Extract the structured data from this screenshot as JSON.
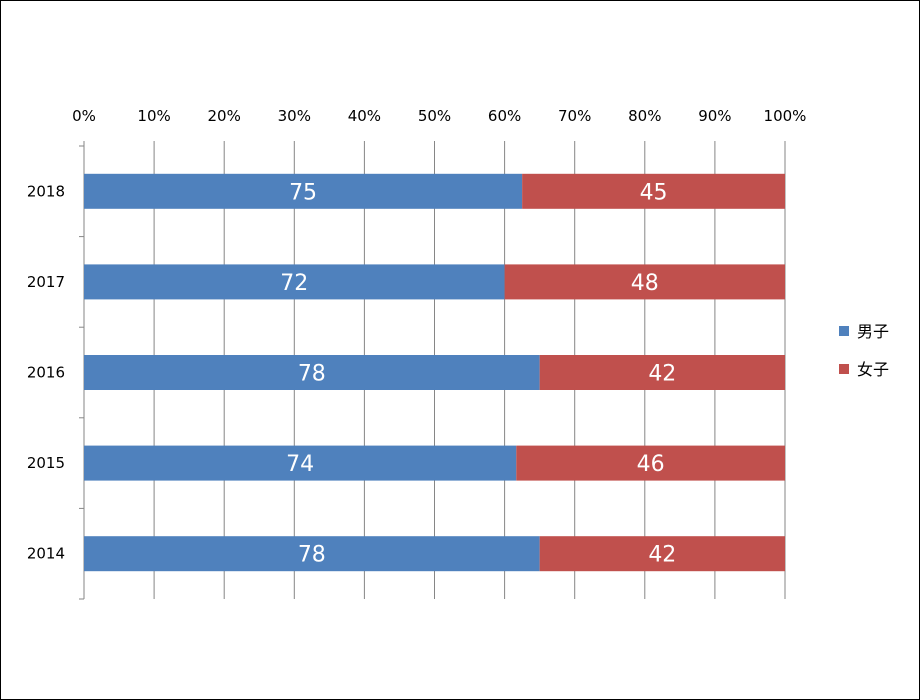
{
  "chart_data": {
    "type": "bar",
    "orientation": "horizontal",
    "stacking": "percent",
    "categories": [
      "2018",
      "2017",
      "2016",
      "2015",
      "2014"
    ],
    "series": [
      {
        "name": "男子",
        "values": [
          75,
          72,
          78,
          74,
          78
        ],
        "color": "#4F81BD"
      },
      {
        "name": "女子",
        "values": [
          45,
          48,
          42,
          46,
          42
        ],
        "color": "#C0504D"
      }
    ],
    "title": "",
    "xlabel": "",
    "ylabel": "",
    "xlim": [
      0,
      100
    ],
    "x_tick_labels": [
      "0%",
      "10%",
      "20%",
      "30%",
      "40%",
      "50%",
      "60%",
      "70%",
      "80%",
      "90%",
      "100%"
    ],
    "x_axis_position": "top",
    "grid": true,
    "legend": "right"
  }
}
